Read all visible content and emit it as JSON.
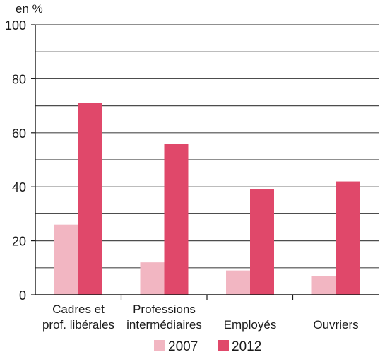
{
  "chart_data": {
    "type": "bar",
    "ylabel": "en %",
    "ylim": [
      0,
      100
    ],
    "yticks": [
      "0",
      "20",
      "40",
      "60",
      "80",
      "100"
    ],
    "grid": true,
    "legend_position": "bottom",
    "categories": [
      [
        "Cadres et",
        "prof. libérales"
      ],
      [
        "Professions",
        "intermédiaires"
      ],
      [
        "Employés"
      ],
      [
        "Ouvriers"
      ]
    ],
    "series": [
      {
        "name": "2007",
        "color": "#f2b6c2",
        "values": [
          26,
          12,
          9,
          7
        ]
      },
      {
        "name": "2012",
        "color": "#e0486a",
        "values": [
          71,
          56,
          39,
          42
        ]
      }
    ]
  }
}
